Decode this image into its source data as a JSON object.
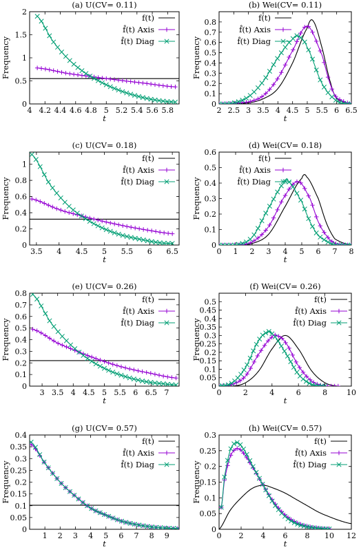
{
  "figure": {
    "legend_labels": [
      "f(t)",
      "f̂(t) Axis",
      "f̂(t) Diag"
    ],
    "series_colors": {
      "f(t)": "#000000",
      "f̂(t) Axis": "#9400d3",
      "f̂(t) Diag": "#009e73"
    }
  },
  "chart_data": [
    {
      "id": "a",
      "type": "line",
      "title": "(a) U(CV= 0.11)",
      "xlabel": "t",
      "ylabel": "Frequency",
      "xlim": [
        4.0,
        5.95
      ],
      "ylim": [
        0,
        2
      ],
      "xticks": [
        4,
        4.2,
        4.4,
        4.6,
        4.8,
        5,
        5.2,
        5.4,
        5.6,
        5.8
      ],
      "xtick_labels": [
        "4",
        "4.2",
        "4.4",
        "4.6",
        "4.8",
        "5",
        "5.2",
        "5.4",
        "5.6",
        "5.8"
      ],
      "yticks": [
        0,
        0.5,
        1,
        1.5,
        2
      ],
      "ytick_labels": [
        "0",
        "0.5",
        "1",
        "1.5",
        "2"
      ],
      "legend": "top-right",
      "series": [
        {
          "name": "f(t)",
          "x": [
            4.0,
            5.95
          ],
          "y": [
            0.55,
            0.55
          ]
        },
        {
          "name": "f̂(t) Axis",
          "x": [
            4.1,
            4.5,
            5.0,
            5.5,
            5.9
          ],
          "y": [
            0.78,
            0.66,
            0.55,
            0.45,
            0.37
          ]
        },
        {
          "name": "f̂(t) Diag",
          "x": [
            4.1,
            4.3,
            4.5,
            4.7,
            4.9,
            5.1,
            5.3,
            5.5,
            5.7,
            5.9
          ],
          "y": [
            1.9,
            1.37,
            0.98,
            0.7,
            0.5,
            0.34,
            0.22,
            0.13,
            0.07,
            0.04
          ]
        }
      ]
    },
    {
      "id": "b",
      "type": "line",
      "title": "(b) Wei(CV= 0.11)",
      "xlabel": "t",
      "ylabel": "Frequency",
      "xlim": [
        2,
        6.5
      ],
      "ylim": [
        0,
        0.9
      ],
      "xticks": [
        2,
        2.5,
        3,
        3.5,
        4,
        4.5,
        5,
        5.5,
        6,
        6.5
      ],
      "xtick_labels": [
        "2",
        "2.5",
        "3",
        "3.5",
        "4",
        "4.5",
        "5",
        "5.5",
        "6",
        "6.5"
      ],
      "yticks": [
        0,
        0.1,
        0.2,
        0.3,
        0.4,
        0.5,
        0.6,
        0.7,
        0.8
      ],
      "ytick_labels": [
        "0",
        "0.1",
        "0.2",
        "0.3",
        "0.4",
        "0.5",
        "0.6",
        "0.7",
        "0.8"
      ],
      "legend": "top-left",
      "series": [
        {
          "name": "f(t)",
          "x": [
            2,
            3,
            3.5,
            4,
            4.5,
            5,
            5.2,
            5.5,
            5.8,
            6,
            6.5
          ],
          "y": [
            0,
            0.01,
            0.05,
            0.15,
            0.4,
            0.74,
            0.81,
            0.55,
            0.2,
            0.05,
            0
          ]
        },
        {
          "name": "f̂(t) Axis",
          "x": [
            2,
            3,
            3.5,
            4,
            4.5,
            5,
            5.5,
            5.8,
            6,
            6.5
          ],
          "y": [
            0,
            0.02,
            0.08,
            0.25,
            0.52,
            0.76,
            0.48,
            0.18,
            0.06,
            0
          ]
        },
        {
          "name": "f̂(t) Diag",
          "x": [
            2,
            2.5,
            3,
            3.5,
            4,
            4.5,
            4.7,
            5,
            5.5,
            6,
            6.5
          ],
          "y": [
            0,
            0.01,
            0.07,
            0.22,
            0.45,
            0.63,
            0.66,
            0.55,
            0.2,
            0.03,
            0
          ]
        }
      ]
    },
    {
      "id": "c",
      "type": "line",
      "title": "(c) U(CV= 0.18)",
      "xlabel": "t",
      "ylabel": "Frequency",
      "xlim": [
        3.35,
        6.65
      ],
      "ylim": [
        0,
        1.15
      ],
      "xticks": [
        3.5,
        4,
        4.5,
        5,
        5.5,
        6,
        6.5
      ],
      "xtick_labels": [
        "3.5",
        "4",
        "4.5",
        "5",
        "5.5",
        "6",
        "6.5"
      ],
      "yticks": [
        0,
        0.2,
        0.4,
        0.6,
        0.8,
        1
      ],
      "ytick_labels": [
        "0",
        "0.2",
        "0.4",
        "0.6",
        "0.8",
        "1"
      ],
      "legend": "top-right",
      "series": [
        {
          "name": "f(t)",
          "x": [
            3.35,
            6.65
          ],
          "y": [
            0.32,
            0.32
          ]
        },
        {
          "name": "f̂(t) Axis",
          "x": [
            3.4,
            4,
            4.5,
            5,
            5.5,
            6,
            6.5
          ],
          "y": [
            0.57,
            0.44,
            0.36,
            0.29,
            0.23,
            0.18,
            0.14
          ]
        },
        {
          "name": "f̂(t) Diag",
          "x": [
            3.4,
            3.8,
            4.2,
            4.6,
            5.0,
            5.4,
            5.8,
            6.2,
            6.5
          ],
          "y": [
            1.12,
            0.75,
            0.49,
            0.32,
            0.2,
            0.12,
            0.07,
            0.03,
            0.02
          ]
        }
      ]
    },
    {
      "id": "d",
      "type": "line",
      "title": "(d) Wei(CV= 0.18)",
      "xlabel": "t",
      "ylabel": "Frequency",
      "xlim": [
        0,
        8
      ],
      "ylim": [
        0,
        0.6
      ],
      "xticks": [
        0,
        1,
        2,
        3,
        4,
        5,
        6,
        7,
        8
      ],
      "xtick_labels": [
        "0",
        "1",
        "2",
        "3",
        "4",
        "5",
        "6",
        "7",
        "8"
      ],
      "yticks": [
        0,
        0.1,
        0.2,
        0.3,
        0.4,
        0.5,
        0.6
      ],
      "ytick_labels": [
        "0",
        "0.1",
        "0.2",
        "0.3",
        "0.4",
        "0.5",
        "0.6"
      ],
      "legend": "top-left",
      "series": [
        {
          "name": "f(t)",
          "x": [
            0,
            1,
            2,
            3,
            4,
            5,
            5.3,
            6,
            6.5,
            7,
            8
          ],
          "y": [
            0,
            0,
            0.01,
            0.07,
            0.25,
            0.43,
            0.44,
            0.3,
            0.14,
            0.04,
            0
          ]
        },
        {
          "name": "f̂(t) Axis",
          "x": [
            0,
            1,
            2,
            3,
            4,
            4.8,
            5.5,
            6,
            6.5,
            7,
            8
          ],
          "y": [
            0,
            0,
            0.02,
            0.12,
            0.32,
            0.41,
            0.3,
            0.15,
            0.06,
            0.01,
            0
          ]
        },
        {
          "name": "f̂(t) Diag",
          "x": [
            0,
            1,
            2,
            3,
            4,
            4.2,
            5,
            5.5,
            6,
            7,
            8
          ],
          "y": [
            0,
            0,
            0.05,
            0.24,
            0.41,
            0.41,
            0.28,
            0.15,
            0.06,
            0,
            0
          ]
        }
      ]
    },
    {
      "id": "e",
      "type": "line",
      "title": "(e) U(CV= 0.26)",
      "xlabel": "t",
      "ylabel": "Frequency",
      "xlim": [
        2.6,
        7.4
      ],
      "ylim": [
        0,
        0.8
      ],
      "xticks": [
        3,
        3.5,
        4,
        4.5,
        5,
        5.5,
        6,
        6.5,
        7
      ],
      "xtick_labels": [
        "3",
        "3.5",
        "4",
        "4.5",
        "5",
        "5.5",
        "6",
        "6.5",
        "7"
      ],
      "yticks": [
        0,
        0.1,
        0.2,
        0.3,
        0.4,
        0.5,
        0.6,
        0.7,
        0.8
      ],
      "ytick_labels": [
        "0",
        "0.1",
        "0.2",
        "0.3",
        "0.4",
        "0.5",
        "0.6",
        "0.7",
        "0.8"
      ],
      "legend": "top-right",
      "series": [
        {
          "name": "f(t)",
          "x": [
            2.6,
            7.4
          ],
          "y": [
            0.22,
            0.22
          ]
        },
        {
          "name": "f̂(t) Axis",
          "x": [
            2.7,
            3.5,
            4.5,
            5.5,
            6.5,
            7.3
          ],
          "y": [
            0.49,
            0.37,
            0.26,
            0.17,
            0.11,
            0.07
          ]
        },
        {
          "name": "f̂(t) Diag",
          "x": [
            2.7,
            3.3,
            3.9,
            4.5,
            5.1,
            5.7,
            6.3,
            6.9,
            7.3
          ],
          "y": [
            0.79,
            0.54,
            0.36,
            0.23,
            0.14,
            0.08,
            0.04,
            0.02,
            0.01
          ]
        }
      ]
    },
    {
      "id": "f",
      "type": "line",
      "title": "(f) Wei(CV= 0.26)",
      "xlabel": "t",
      "ylabel": "Frequency",
      "xlim": [
        0,
        10
      ],
      "ylim": [
        0,
        0.55
      ],
      "xticks": [
        0,
        2,
        4,
        6,
        8,
        10
      ],
      "xtick_labels": [
        "0",
        "2",
        "4",
        "6",
        "8",
        "10"
      ],
      "yticks": [
        0,
        0.05,
        0.1,
        0.15,
        0.2,
        0.25,
        0.3,
        0.35,
        0.4,
        0.45,
        0.5
      ],
      "ytick_labels": [
        "0",
        "0.05",
        "0.1",
        "0.15",
        "0.2",
        "0.25",
        "0.3",
        "0.35",
        "0.4",
        "0.45",
        "0.5"
      ],
      "legend": "top-right",
      "series": [
        {
          "name": "f(t)",
          "x": [
            0,
            1,
            2,
            3,
            4,
            5,
            6,
            7,
            8,
            9,
            10
          ],
          "y": [
            0,
            0,
            0.02,
            0.09,
            0.22,
            0.3,
            0.22,
            0.09,
            0.02,
            0,
            0
          ]
        },
        {
          "name": "f̂(t) Axis",
          "x": [
            0,
            1,
            2,
            3,
            4,
            4.3,
            5,
            6,
            7,
            8,
            9
          ],
          "y": [
            0,
            0.01,
            0.06,
            0.19,
            0.29,
            0.3,
            0.26,
            0.12,
            0.03,
            0,
            0
          ]
        },
        {
          "name": "f̂(t) Diag",
          "x": [
            0,
            1,
            2,
            3,
            3.7,
            4,
            5,
            6,
            7,
            8
          ],
          "y": [
            0,
            0.02,
            0.11,
            0.27,
            0.32,
            0.31,
            0.2,
            0.07,
            0.01,
            0
          ]
        }
      ]
    },
    {
      "id": "g",
      "type": "line",
      "title": "(g) U(CV= 0.57)",
      "xlabel": "t",
      "ylabel": "Frequency",
      "xlim": [
        0,
        9.8
      ],
      "ylim": [
        0,
        0.4
      ],
      "xticks": [
        1,
        2,
        3,
        4,
        5,
        6,
        7,
        8,
        9
      ],
      "xtick_labels": [
        "1",
        "2",
        "3",
        "4",
        "5",
        "6",
        "7",
        "8",
        "9"
      ],
      "yticks": [
        0,
        0.05,
        0.1,
        0.15,
        0.2,
        0.25,
        0.3,
        0.35,
        0.4
      ],
      "ytick_labels": [
        "0",
        "0.05",
        "0.1",
        "0.15",
        "0.2",
        "0.25",
        "0.3",
        "0.35",
        "0.4"
      ],
      "legend": "top-right",
      "series": [
        {
          "name": "f(t)",
          "x": [
            0,
            9.8
          ],
          "y": [
            0.102,
            0.102
          ]
        },
        {
          "name": "f̂(t) Axis",
          "x": [
            0.1,
            1,
            2,
            3,
            4,
            5,
            6,
            7,
            8,
            9,
            9.7
          ],
          "y": [
            0.36,
            0.28,
            0.2,
            0.14,
            0.09,
            0.06,
            0.035,
            0.02,
            0.01,
            0.005,
            0.003
          ]
        },
        {
          "name": "f̂(t) Diag",
          "x": [
            0.1,
            1,
            2,
            3,
            4,
            5,
            6,
            7,
            8,
            9,
            9.7
          ],
          "y": [
            0.37,
            0.28,
            0.2,
            0.14,
            0.09,
            0.06,
            0.035,
            0.02,
            0.01,
            0.005,
            0.003
          ]
        }
      ]
    },
    {
      "id": "h",
      "type": "line",
      "title": "(h) Wei(CV= 0.57)",
      "xlabel": "t",
      "ylabel": "Frequency",
      "xlim": [
        0,
        12
      ],
      "ylim": [
        0,
        0.3
      ],
      "xticks": [
        0,
        2,
        4,
        6,
        8,
        10,
        12
      ],
      "xtick_labels": [
        "0",
        "2",
        "4",
        "6",
        "8",
        "10",
        "12"
      ],
      "yticks": [
        0,
        0.05,
        0.1,
        0.15,
        0.2,
        0.25,
        0.3
      ],
      "ytick_labels": [
        "0",
        "0.05",
        "0.1",
        "0.15",
        "0.2",
        "0.25",
        "0.3"
      ],
      "legend": "top-right",
      "series": [
        {
          "name": "f(t)",
          "x": [
            0,
            1,
            2,
            3,
            4,
            5,
            6,
            7,
            8,
            9,
            10,
            11,
            12
          ],
          "y": [
            0,
            0.06,
            0.1,
            0.13,
            0.14,
            0.13,
            0.115,
            0.095,
            0.075,
            0.055,
            0.04,
            0.027,
            0.018
          ]
        },
        {
          "name": "f̂(t) Axis",
          "x": [
            0.2,
            0.5,
            1,
            1.5,
            2,
            3,
            4,
            5,
            6,
            7,
            8,
            9,
            10
          ],
          "y": [
            0.07,
            0.16,
            0.23,
            0.255,
            0.25,
            0.2,
            0.14,
            0.085,
            0.045,
            0.022,
            0.01,
            0.004,
            0.001
          ]
        },
        {
          "name": "f̂(t) Diag",
          "x": [
            0.2,
            0.5,
            1,
            1.5,
            2,
            3,
            4,
            5,
            6,
            7,
            8,
            9,
            10
          ],
          "y": [
            0.07,
            0.17,
            0.25,
            0.275,
            0.265,
            0.205,
            0.14,
            0.08,
            0.04,
            0.018,
            0.008,
            0.003,
            0.001
          ]
        }
      ]
    }
  ]
}
